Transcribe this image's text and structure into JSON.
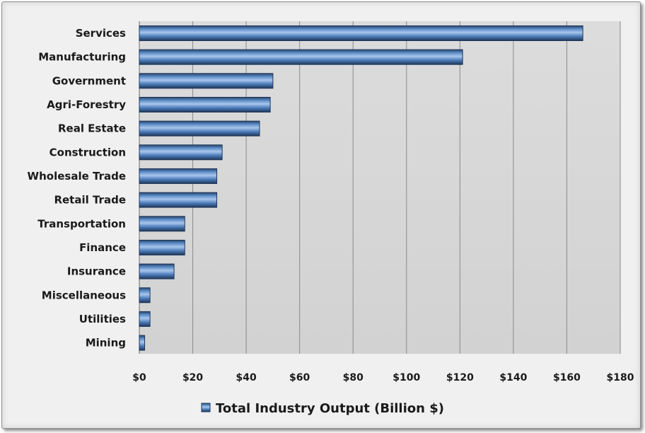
{
  "chart_data": {
    "type": "bar",
    "orientation": "horizontal",
    "categories": [
      "Services",
      "Manufacturing",
      "Government",
      "Agri-Forestry",
      "Real Estate",
      "Construction",
      "Wholesale Trade",
      "Retail Trade",
      "Transportation",
      "Finance",
      "Insurance",
      "Miscellaneous",
      "Utilities",
      "Mining"
    ],
    "series": [
      {
        "name": "Total Industry Output (Billion $)",
        "values": [
          166,
          121,
          50,
          49,
          45,
          31,
          29,
          29,
          17,
          17,
          13,
          4,
          4,
          2
        ],
        "color": "#4f81bd"
      }
    ],
    "x_ticks": [
      "$0",
      "$20",
      "$40",
      "$60",
      "$80",
      "$100",
      "$120",
      "$140",
      "$160",
      "$180"
    ],
    "xlim": [
      0,
      180
    ],
    "grid": "vertical",
    "legend_position": "bottom"
  }
}
